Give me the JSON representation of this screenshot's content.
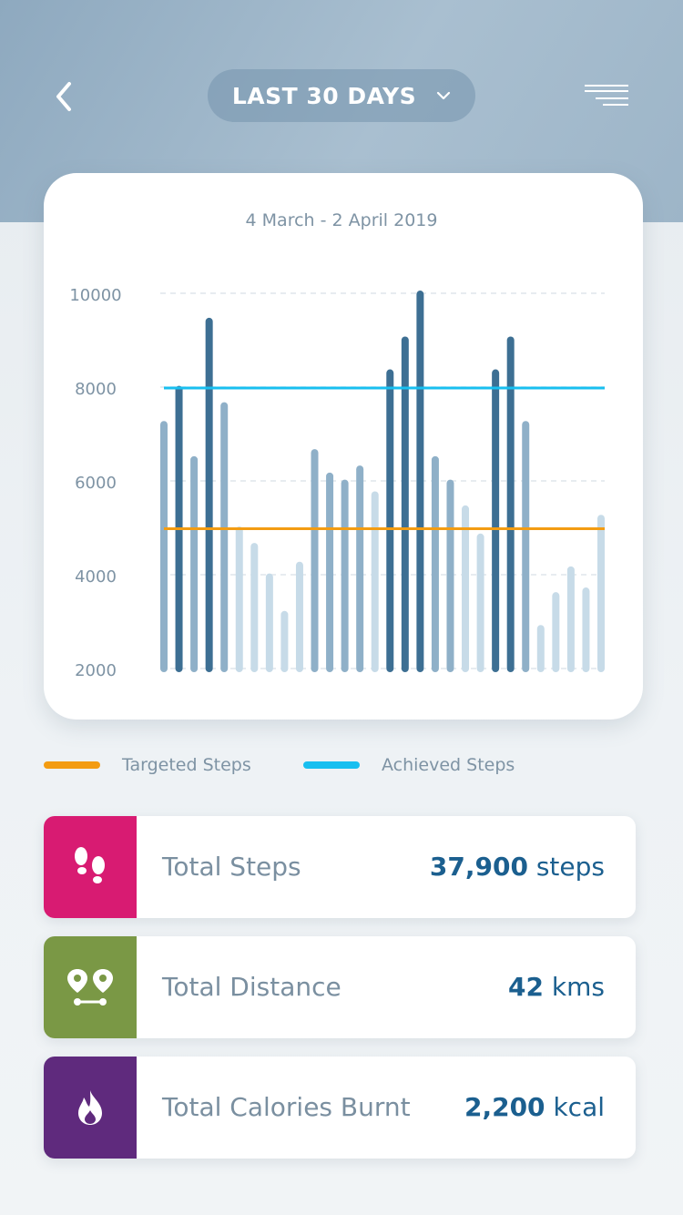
{
  "header": {
    "period_label": "LAST 30 DAYS"
  },
  "chart_card": {
    "date_range": "4 March - 2 April 2019"
  },
  "chart_data": {
    "type": "bar",
    "title": "",
    "xlabel": "",
    "ylabel": "",
    "ylim": [
      2000,
      10000
    ],
    "y_ticks": [
      "10000",
      "8000",
      "6000",
      "4000",
      "2000"
    ],
    "y_tick_values": [
      10000,
      8000,
      6000,
      4000,
      2000
    ],
    "grid": true,
    "values": [
      7200,
      7950,
      6450,
      9400,
      7600,
      4950,
      4600,
      3950,
      3150,
      4200,
      6600,
      6100,
      5950,
      6250,
      5700,
      8300,
      9000,
      9980,
      6450,
      5950,
      5400,
      4800,
      8300,
      9000,
      7200,
      2850,
      3550,
      4100,
      3650,
      5200
    ],
    "bar_colors": [
      "#8fb0c8",
      "#3d6f93",
      "#8fb0c8",
      "#3d6f93",
      "#8fb0c8",
      "#c7dbe8",
      "#c7dbe8",
      "#c7dbe8",
      "#c7dbe8",
      "#c7dbe8",
      "#8fb0c8",
      "#8fb0c8",
      "#8fb0c8",
      "#8fb0c8",
      "#c7dbe8",
      "#3d6f93",
      "#3d6f93",
      "#3d6f93",
      "#8fb0c8",
      "#8fb0c8",
      "#c7dbe8",
      "#c7dbe8",
      "#3d6f93",
      "#3d6f93",
      "#8fb0c8",
      "#c7dbe8",
      "#c7dbe8",
      "#c7dbe8",
      "#c7dbe8",
      "#c7dbe8"
    ],
    "reference_lines": [
      {
        "name": "Targeted Steps",
        "value": 4980,
        "color": "#f39c12"
      },
      {
        "name": "Achieved Steps",
        "value": 7980,
        "color": "#18bff0"
      }
    ],
    "legend": [
      {
        "label": "Targeted Steps",
        "color": "#f39c12"
      },
      {
        "label": "Achieved Steps",
        "color": "#18bff0"
      }
    ],
    "legend_position": "bottom"
  },
  "stats": [
    {
      "label": "Total Steps",
      "value": "37,900",
      "unit": "steps",
      "icon": "footsteps-icon",
      "color": "#d81b72"
    },
    {
      "label": "Total Distance",
      "value": "42",
      "unit": "kms",
      "icon": "map-pins-route-icon",
      "color": "#7a9845"
    },
    {
      "label": "Total Calories Burnt",
      "value": "2,200",
      "unit": "kcal",
      "icon": "flame-icon",
      "color": "#5f2a7d"
    }
  ]
}
